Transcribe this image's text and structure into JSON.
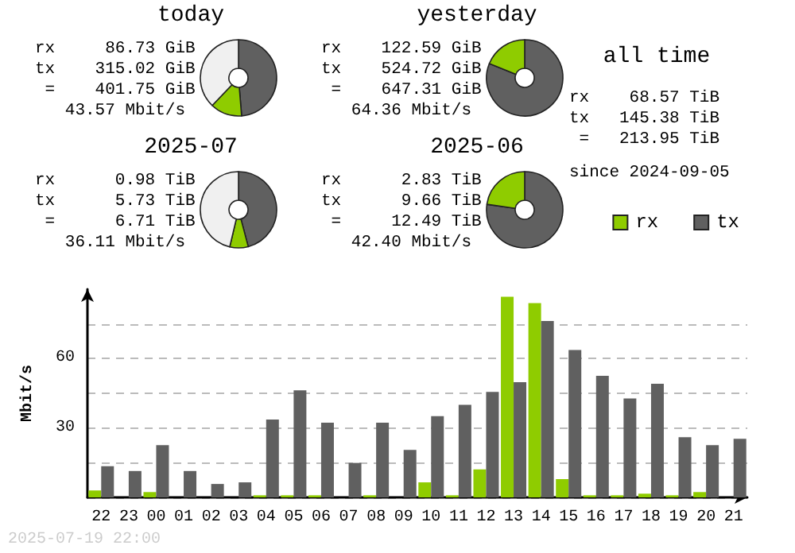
{
  "chart_data": [
    {
      "type": "donut",
      "title": "today",
      "categories": [
        null,
        null,
        null
      ],
      "values": [
        48.7,
        13.4,
        37.9
      ],
      "colors": [
        "#606060",
        "#8fcc00",
        "#f0f0f0"
      ],
      "annotations": [
        "rx     86.73 GiB",
        "tx    315.02 GiB",
        " =    401.75 GiB",
        "   43.57 Mbit/s"
      ]
    },
    {
      "type": "donut",
      "title": "yesterday",
      "categories": [
        null,
        null
      ],
      "values": [
        81.1,
        18.9
      ],
      "colors": [
        "#606060",
        "#8fcc00"
      ],
      "annotations": [
        "rx    122.59 GiB",
        "tx    524.72 GiB",
        " =    647.31 GiB",
        "   64.36 Mbit/s"
      ]
    },
    {
      "type": "donut",
      "title": "2025-07",
      "categories": [
        null,
        null,
        null
      ],
      "values": [
        45.9,
        7.8,
        46.3
      ],
      "colors": [
        "#606060",
        "#8fcc00",
        "#f0f0f0"
      ],
      "annotations": [
        "rx      0.98 TiB",
        "tx      5.73 TiB",
        " =      6.71 TiB",
        "   36.11 Mbit/s"
      ]
    },
    {
      "type": "donut",
      "title": "2025-06",
      "categories": [
        null,
        null
      ],
      "values": [
        77.3,
        22.7
      ],
      "colors": [
        "#606060",
        "#8fcc00"
      ],
      "annotations": [
        "rx      2.83 TiB",
        "tx      9.66 TiB",
        " =     12.49 TiB",
        "   42.40 Mbit/s"
      ]
    },
    {
      "type": "other",
      "title": "all time",
      "annotations": [
        "rx    68.57 TiB",
        "tx   145.38 TiB",
        " =   213.95 TiB",
        "since 2024-09-05"
      ]
    },
    {
      "type": "bar",
      "ylabel": "Mbit/s",
      "categories": [
        "22",
        "23",
        "00",
        "01",
        "02",
        "03",
        "04",
        "05",
        "06",
        "07",
        "08",
        "09",
        "10",
        "11",
        "12",
        "13",
        "14",
        "15",
        "16",
        "17",
        "18",
        "19",
        "20",
        "21"
      ],
      "series": [
        {
          "name": "rx",
          "color": "#8fcc00",
          "values": [
            3,
            0,
            2.3,
            0,
            0,
            0,
            0.9,
            0.9,
            0.9,
            0,
            0.9,
            0,
            6.5,
            0.9,
            12.1,
            86.7,
            84,
            7.9,
            0.9,
            0.9,
            1.6,
            0.9,
            2.3,
            0
          ]
        },
        {
          "name": "tx",
          "color": "#606060",
          "values": [
            13.5,
            11.4,
            22.6,
            11.4,
            5.8,
            6.5,
            33.7,
            46.3,
            32.3,
            14.9,
            32.3,
            20.5,
            35.1,
            40,
            45.6,
            49.8,
            76.3,
            63.7,
            52.6,
            42.8,
            49.1,
            26,
            22.6,
            25.3
          ]
        }
      ],
      "ylim": [
        0,
        90
      ],
      "yticks": [
        {
          "value": 0,
          "label": null
        },
        {
          "value": 15,
          "label": null
        },
        30,
        {
          "value": 45,
          "label": null
        },
        60,
        {
          "value": 75,
          "label": null
        }
      ],
      "grid": "y",
      "legend": "top right",
      "annotations": [
        "2025-07-19 22:00"
      ]
    }
  ]
}
